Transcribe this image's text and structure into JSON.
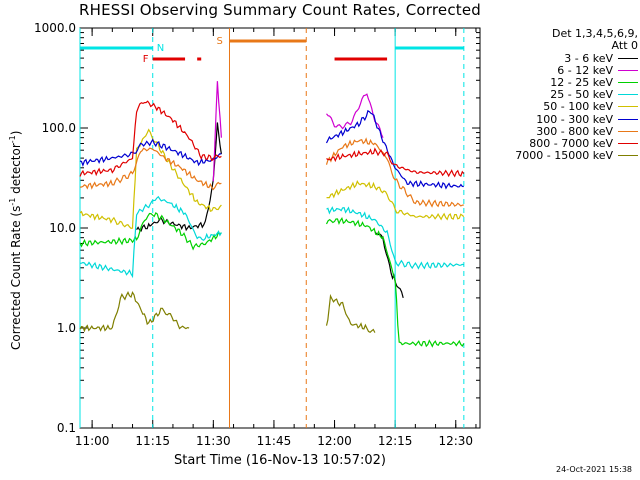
{
  "title": "RHESSI Observing Summary Count Rates, Corrected",
  "xlabel": "Start Time (16-Nov-13 10:57:02)",
  "ylabel_main": "Corrected Count Rate (s",
  "ylabel_sup": "-1",
  "ylabel_tail": " detector",
  "ylabel_sup2": "-1",
  "ylabel_end": ")",
  "footer": "24-Oct-2021 15:38",
  "legend": {
    "header1": "Det 1,3,4,5,6,9,",
    "header2": "Att 0"
  },
  "flag_labels": {
    "night": "N",
    "flare": "F",
    "saa": "S"
  },
  "colors": {
    "night": "#00e5e5",
    "flare": "#e00000",
    "saa": "#e87818"
  },
  "chart_data": {
    "type": "line",
    "title": "RHESSI Observing Summary Count Rates, Corrected",
    "xlabel": "Start Time (16-Nov-13 10:57:02)",
    "ylabel": "Corrected Count Rate (s-1 detector-1)",
    "xscale": "time",
    "yscale": "log",
    "xlim": [
      "10:57",
      "12:36"
    ],
    "ylim": [
      0.1,
      1000.0
    ],
    "x_ticks": [
      "11:00",
      "11:15",
      "11:30",
      "11:45",
      "12:00",
      "12:15",
      "12:30"
    ],
    "y_ticks": [
      "0.1",
      "1.0",
      "10.0",
      "100.0",
      "1000.0"
    ],
    "grid": false,
    "legend_position": "right",
    "series": [
      {
        "name": "3 - 6 keV",
        "color": "#000000",
        "segments": [
          [
            [
              "11:11",
              9.5
            ],
            [
              "11:14",
              10.5
            ],
            [
              "11:15",
              11
            ],
            [
              "11:17",
              12
            ],
            [
              "11:20",
              11
            ],
            [
              "11:24",
              10
            ],
            [
              "11:28",
              11
            ],
            [
              "11:30",
              30
            ],
            [
              "11:31",
              110
            ],
            [
              "11:32",
              55
            ]
          ],
          [
            [
              "12:10",
              9
            ],
            [
              "12:12",
              8
            ],
            [
              "12:14",
              3.5
            ],
            [
              "12:15",
              3
            ],
            [
              "12:17",
              2
            ]
          ]
        ]
      },
      {
        "name": "6 - 12 keV",
        "color": "#d000d0",
        "segments": [
          [
            [
              "11:30",
              30
            ],
            [
              "11:31",
              290
            ],
            [
              "11:32",
              80
            ]
          ],
          [
            [
              "11:58",
              140
            ],
            [
              "12:00",
              110
            ],
            [
              "12:02",
              100
            ],
            [
              "12:04",
              115
            ],
            [
              "12:06",
              160
            ],
            [
              "12:08",
              230
            ],
            [
              "12:10",
              120
            ],
            [
              "12:12",
              80
            ]
          ]
        ]
      },
      {
        "name": "12 - 25 keV",
        "color": "#00d000",
        "segments": [
          [
            [
              "10:57",
              7
            ],
            [
              "11:10",
              7.5
            ],
            [
              "11:11",
              8
            ],
            [
              "11:13",
              12
            ],
            [
              "11:15",
              14
            ],
            [
              "11:18",
              12
            ],
            [
              "11:22",
              9
            ],
            [
              "11:25",
              6.5
            ],
            [
              "11:28",
              7
            ],
            [
              "11:32",
              9
            ]
          ],
          [
            [
              "11:58",
              11
            ],
            [
              "12:00",
              12
            ],
            [
              "12:04",
              11.5
            ],
            [
              "12:08",
              10.5
            ],
            [
              "12:12",
              8
            ],
            [
              "12:15",
              3
            ],
            [
              "12:16",
              0.7
            ],
            [
              "12:32",
              0.7
            ]
          ]
        ]
      },
      {
        "name": "25 - 50 keV",
        "color": "#00d8d8",
        "segments": [
          [
            [
              "10:57",
              4.5
            ],
            [
              "11:10",
              3.5
            ],
            [
              "11:11",
              14
            ],
            [
              "11:14",
              17
            ],
            [
              "11:16",
              20
            ],
            [
              "11:19",
              18
            ],
            [
              "11:23",
              14
            ],
            [
              "11:26",
              8
            ],
            [
              "11:28",
              8
            ],
            [
              "11:32",
              9
            ]
          ],
          [
            [
              "11:58",
              15
            ],
            [
              "12:02",
              15.5
            ],
            [
              "12:06",
              14
            ],
            [
              "12:10",
              12
            ],
            [
              "12:13",
              9
            ],
            [
              "12:15",
              4.5
            ],
            [
              "12:20",
              4.2
            ],
            [
              "12:32",
              4.3
            ]
          ]
        ]
      },
      {
        "name": "50 - 100 keV",
        "color": "#d0c000",
        "segments": [
          [
            [
              "10:57",
              14
            ],
            [
              "11:05",
              12
            ],
            [
              "11:10",
              10
            ],
            [
              "11:11",
              60
            ],
            [
              "11:14",
              95
            ],
            [
              "11:16",
              70
            ],
            [
              "11:19",
              45
            ],
            [
              "11:22",
              30
            ],
            [
              "11:26",
              18
            ],
            [
              "11:30",
              15
            ],
            [
              "11:32",
              17
            ]
          ],
          [
            [
              "11:58",
              20
            ],
            [
              "12:02",
              24
            ],
            [
              "12:06",
              28
            ],
            [
              "12:10",
              26
            ],
            [
              "12:13",
              22
            ],
            [
              "12:15",
              15
            ],
            [
              "12:20",
              13
            ],
            [
              "12:32",
              13
            ]
          ]
        ]
      },
      {
        "name": "100 - 300 keV",
        "color": "#0000d0",
        "segments": [
          [
            [
              "10:57",
              45
            ],
            [
              "11:05",
              50
            ],
            [
              "11:10",
              55
            ],
            [
              "11:12",
              68
            ],
            [
              "11:15",
              72
            ],
            [
              "11:18",
              65
            ],
            [
              "11:22",
              55
            ],
            [
              "11:26",
              45
            ],
            [
              "11:30",
              48
            ],
            [
              "11:32",
              55
            ]
          ],
          [
            [
              "11:58",
              75
            ],
            [
              "12:02",
              90
            ],
            [
              "12:06",
              110
            ],
            [
              "12:09",
              150
            ],
            [
              "12:12",
              75
            ],
            [
              "12:15",
              40
            ],
            [
              "12:18",
              28
            ],
            [
              "12:32",
              26
            ]
          ]
        ]
      },
      {
        "name": "300 - 800 keV",
        "color": "#e87818",
        "segments": [
          [
            [
              "10:57",
              26
            ],
            [
              "11:05",
              28
            ],
            [
              "11:10",
              35
            ],
            [
              "11:12",
              60
            ],
            [
              "11:15",
              62
            ],
            [
              "11:18",
              50
            ],
            [
              "11:22",
              40
            ],
            [
              "11:26",
              30
            ],
            [
              "11:30",
              25
            ],
            [
              "11:32",
              28
            ]
          ],
          [
            [
              "11:58",
              45
            ],
            [
              "12:02",
              65
            ],
            [
              "12:06",
              75
            ],
            [
              "12:10",
              70
            ],
            [
              "12:13",
              50
            ],
            [
              "12:15",
              30
            ],
            [
              "12:20",
              18
            ],
            [
              "12:32",
              17
            ]
          ]
        ]
      },
      {
        "name": "800 - 7000 keV",
        "color": "#e00000",
        "segments": [
          [
            [
              "10:57",
              35
            ],
            [
              "11:05",
              38
            ],
            [
              "11:10",
              50
            ],
            [
              "11:11",
              150
            ],
            [
              "11:13",
              185
            ],
            [
              "11:16",
              160
            ],
            [
              "11:20",
              120
            ],
            [
              "11:24",
              80
            ],
            [
              "11:27",
              52
            ],
            [
              "11:30",
              50
            ],
            [
              "11:32",
              52
            ]
          ],
          [
            [
              "11:58",
              48
            ],
            [
              "12:02",
              52
            ],
            [
              "12:06",
              55
            ],
            [
              "12:10",
              58
            ],
            [
              "12:13",
              55
            ],
            [
              "12:15",
              42
            ],
            [
              "12:20",
              36
            ],
            [
              "12:32",
              35
            ]
          ]
        ]
      },
      {
        "name": "7000 - 15000 keV",
        "color": "#7f7f00",
        "segments": [
          [
            [
              "10:57",
              1.0
            ],
            [
              "11:05",
              1.0
            ],
            [
              "11:07",
              2.0
            ],
            [
              "11:10",
              2.2
            ],
            [
              "11:14",
              1.1
            ],
            [
              "11:17",
              1.5
            ],
            [
              "11:19",
              1.4
            ],
            [
              "11:22",
              1.0
            ],
            [
              "11:24",
              1.0
            ]
          ],
          [
            [
              "11:58",
              1.0
            ],
            [
              "11:59",
              2.0
            ],
            [
              "12:02",
              1.7
            ],
            [
              "12:04",
              1.1
            ],
            [
              "12:08",
              1.0
            ],
            [
              "12:10",
              0.9
            ]
          ]
        ]
      }
    ],
    "annotations": {
      "night_bars": [
        [
          "10:57",
          "11:15"
        ],
        [
          "12:15",
          "12:32"
        ]
      ],
      "flare_bars": [
        [
          "11:15",
          "11:23"
        ],
        [
          "11:26",
          "11:27"
        ],
        [
          "12:00",
          "12:13"
        ]
      ],
      "saa_bars": [
        [
          "11:34",
          "11:53"
        ]
      ],
      "night_lines": [
        "11:15",
        "12:32"
      ],
      "night_solid_lines": [
        "10:57",
        "12:15"
      ],
      "saa_lines": [
        "11:53"
      ],
      "saa_solid_lines": [
        "11:34"
      ]
    }
  }
}
